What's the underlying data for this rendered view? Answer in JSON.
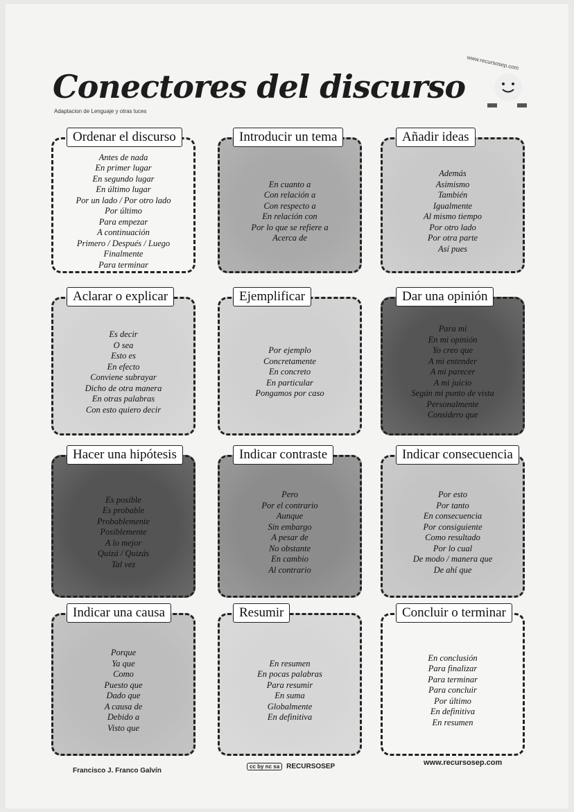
{
  "header": {
    "title": "Conectores del discurso",
    "subtitle": "Adaptacion de Lenguaje y otras luces",
    "brand_url_top": "www.recursosep.com"
  },
  "cards": [
    {
      "label": "Ordenar el discurso",
      "shade": "#f6f6f4",
      "items": [
        "Antes de nada",
        "En primer lugar",
        "En segundo lugar",
        "En último lugar",
        "Por un lado / Por otro lado",
        "Por último",
        "Para empezar",
        "A continuación",
        "Primero / Después / Luego",
        "Finalmente",
        "Para terminar"
      ]
    },
    {
      "label": "Introducir un tema",
      "shade": "#a9a9a9",
      "items": [
        "En cuanto a",
        "Con relación a",
        "Con respecto a",
        "En relación con",
        "Por lo que se refiere a",
        "Acerca de"
      ]
    },
    {
      "label": "Añadir ideas",
      "shade": "#c9c9c9",
      "items": [
        "Además",
        "Asimismo",
        "También",
        "Igualmente",
        "Al mismo tiempo",
        "Por otro lado",
        "Por otra parte",
        "Así pues"
      ]
    },
    {
      "label": "Aclarar o explicar",
      "shade": "#d3d3d3",
      "items": [
        "Es decir",
        "O sea",
        "Esto es",
        "En efecto",
        "Conviene subrayar",
        "Dicho de otra manera",
        "En otras palabras",
        "Con esto quiero decir"
      ]
    },
    {
      "label": "Ejemplificar",
      "shade": "#d0d0d0",
      "items": [
        "Por ejemplo",
        "Concretamente",
        "En concreto",
        "En particular",
        "Pongamos por caso"
      ]
    },
    {
      "label": "Dar una opinión",
      "shade": "#555555",
      "items": [
        "Para mí",
        "En mi opinión",
        "Yo creo que",
        "A mi entender",
        "A mi parecer",
        "A mi juicio",
        "Según mi punto de vista",
        "Personalmente",
        "Considero que"
      ]
    },
    {
      "label": "Hacer una hipótesis",
      "shade": "#545454",
      "items": [
        "Es posible",
        "Es probable",
        "Probablemente",
        "Posiblemente",
        "A lo mejor",
        "Quizá / Quizás",
        "Tal vez"
      ]
    },
    {
      "label": "Indicar contraste",
      "shade": "#8c8c8c",
      "items": [
        "Pero",
        "Por el contrario",
        "Aunque",
        "Sin embargo",
        "A pesar de",
        "No obstante",
        "En cambio",
        "Al contrario"
      ]
    },
    {
      "label": "Indicar consecuencia",
      "shade": "#c4c4c4",
      "items": [
        "Por esto",
        "Por tanto",
        "En consecuencia",
        "Por consiguiente",
        "Como resultado",
        "Por lo cual",
        "De modo / manera que",
        "De ahí que"
      ]
    },
    {
      "label": "Indicar una causa",
      "shade": "#bdbdbd",
      "items": [
        "Porque",
        "Ya que",
        "Como",
        "Puesto que",
        "Dado que",
        "A causa de",
        "Debido a",
        "Visto que"
      ]
    },
    {
      "label": "Resumir",
      "shade": "#d6d6d6",
      "items": [
        "En resumen",
        "En pocas palabras",
        "Para resumir",
        "En suma",
        "Globalmente",
        "En definitiva"
      ]
    },
    {
      "label": "Concluir o terminar",
      "shade": "#f6f6f4",
      "items": [
        "En conclusión",
        "Para finalizar",
        "Para terminar",
        "Para concluir",
        "Por último",
        "En definitiva",
        "En resumen"
      ]
    }
  ],
  "footer": {
    "author": "Francisco J. Franco Galvín",
    "license_badge": "cc by nc sa",
    "brand": "RECURSOSEP",
    "url": "www.recursosep.com"
  }
}
